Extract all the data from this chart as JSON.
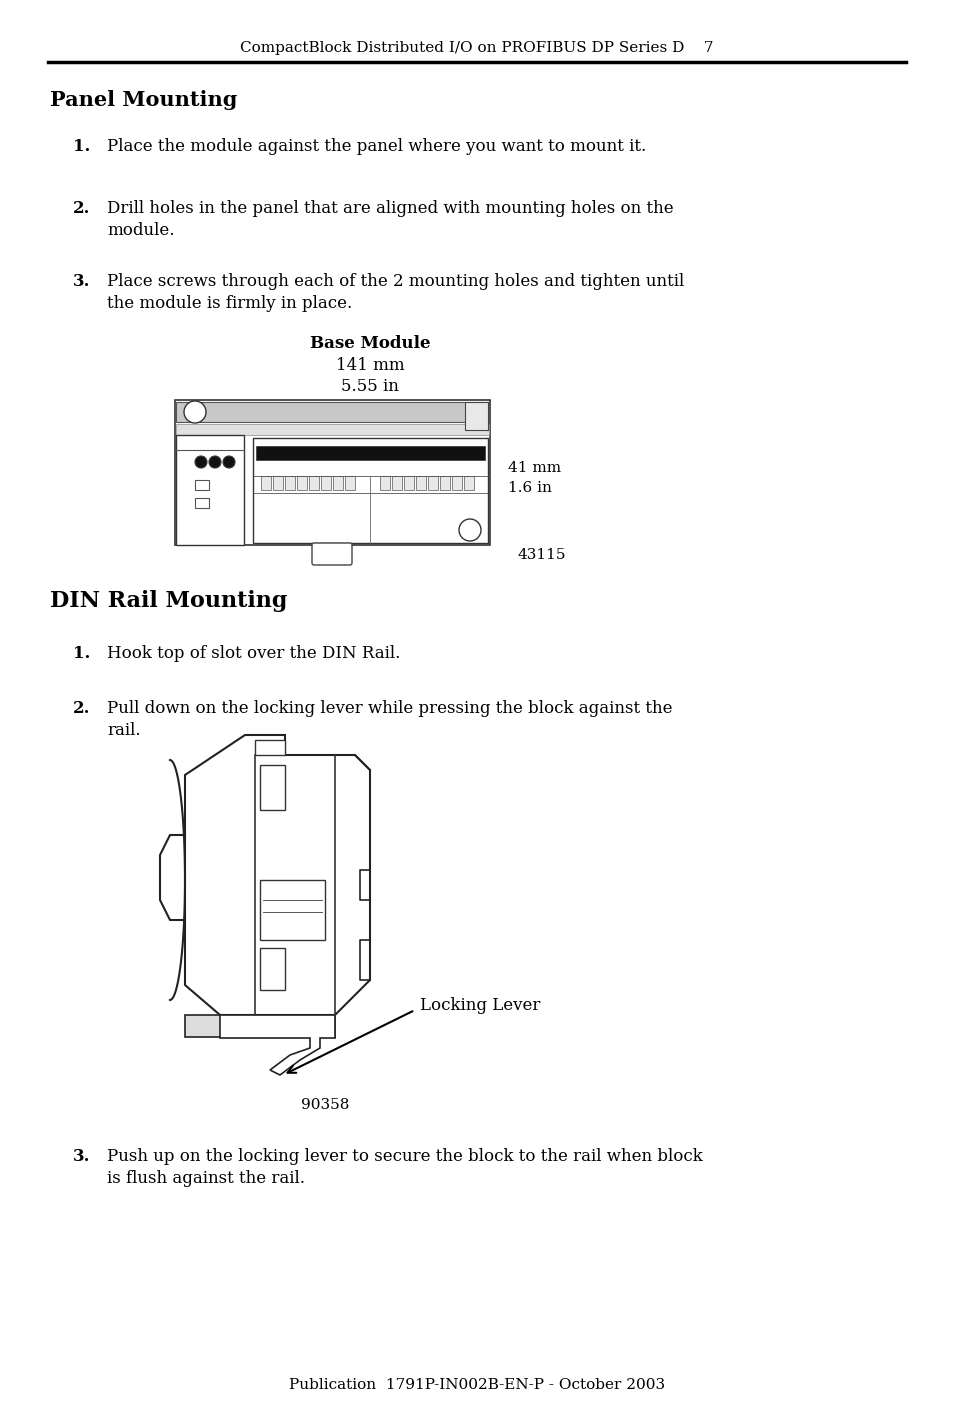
{
  "bg_color": "#ffffff",
  "header_text": "CompactBlock Distributed I/O on PROFIBUS DP Series D",
  "header_page": "7",
  "section1_title": "Panel Mounting",
  "section1_items": [
    "Place the module against the panel where you want to mount it.",
    "Drill holes in the panel that are aligned with mounting holes on the\nmodule.",
    "Place screws through each of the 2 mounting holes and tighten until\nthe module is firmly in place."
  ],
  "base_module_label": "Base Module",
  "base_module_dim1": "141 mm",
  "base_module_dim2": "5.55 in",
  "dim_right1": "41 mm",
  "dim_right2": "1.6 in",
  "figure1_number": "43115",
  "section2_title": "DIN Rail Mounting",
  "section2_items": [
    "Hook top of slot over the DIN Rail.",
    "Pull down on the locking lever while pressing the block against the\nrail."
  ],
  "locking_lever_label": "Locking Lever",
  "figure2_number": "90358",
  "section3_item": "Push up on the locking lever to secure the block to the rail when block\nis flush against the rail.",
  "footer_text": "Publication  1791P-IN002B-EN-P - October 2003"
}
